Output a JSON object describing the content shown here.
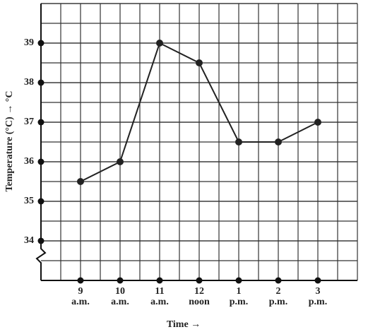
{
  "chart_data": {
    "type": "line",
    "categories": [
      [
        "9",
        "a.m."
      ],
      [
        "10",
        "a.m."
      ],
      [
        "11",
        "a.m."
      ],
      [
        "12",
        "noon"
      ],
      [
        "1",
        "p.m."
      ],
      [
        "2",
        "p.m."
      ],
      [
        "3",
        "p.m."
      ]
    ],
    "values": [
      35.5,
      36,
      39,
      38.5,
      36.5,
      36.5,
      37
    ],
    "ylim": [
      33,
      40
    ],
    "yticks": [
      34,
      35,
      36,
      37,
      38,
      39
    ],
    "x_label": "Time →",
    "y_label": "Temperature (°C) → °C",
    "color": "#222222",
    "grid": true
  }
}
